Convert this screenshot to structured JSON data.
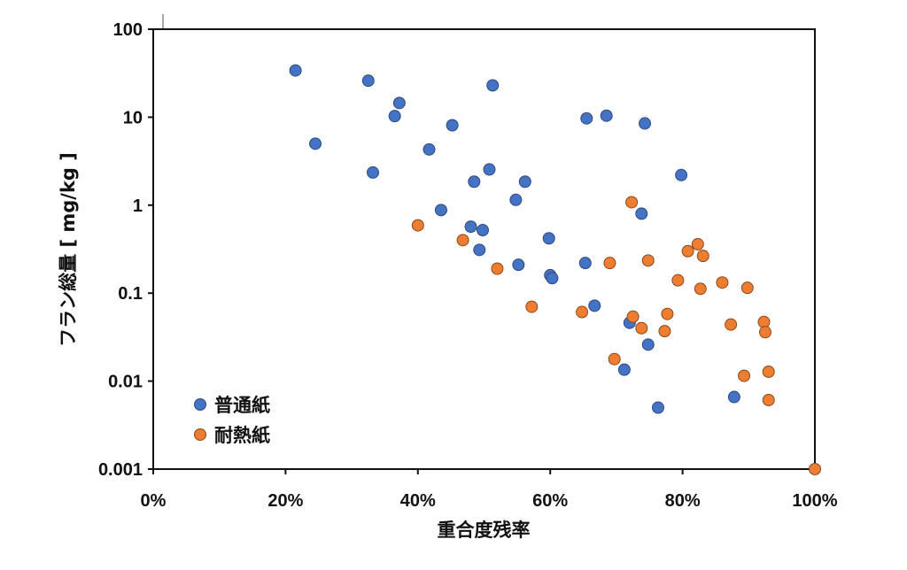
{
  "chart_data": {
    "type": "scatter",
    "title": "",
    "xlabel": "重合度残率",
    "ylabel": "フラン総量 [ mg/kg ]",
    "xlim": [
      0,
      100
    ],
    "ylim": [
      0.001,
      100
    ],
    "y_scale": "log",
    "grid": false,
    "legend_position": "bottom-left",
    "x_ticks": [
      "0%",
      "20%",
      "40%",
      "60%",
      "80%",
      "100%"
    ],
    "y_ticks": [
      "100",
      "10",
      "1",
      "0.1",
      "0.01",
      "0.001"
    ],
    "series": [
      {
        "name": "普通紙",
        "color": "#4472C4",
        "points": [
          [
            21.5,
            34
          ],
          [
            24.5,
            5
          ],
          [
            32.5,
            26
          ],
          [
            33.2,
            2.35
          ],
          [
            36.5,
            10.3
          ],
          [
            37.2,
            14.5
          ],
          [
            41.7,
            4.3
          ],
          [
            43.5,
            0.88
          ],
          [
            45.2,
            8.1
          ],
          [
            48.0,
            0.57
          ],
          [
            48.5,
            1.85
          ],
          [
            49.3,
            0.31
          ],
          [
            49.8,
            0.52
          ],
          [
            50.8,
            2.55
          ],
          [
            51.3,
            23
          ],
          [
            54.8,
            1.15
          ],
          [
            55.2,
            0.21
          ],
          [
            56.2,
            1.85
          ],
          [
            59.8,
            0.42
          ],
          [
            60.0,
            0.16
          ],
          [
            60.3,
            0.148
          ],
          [
            65.3,
            0.22
          ],
          [
            65.5,
            9.7
          ],
          [
            66.7,
            0.072
          ],
          [
            68.5,
            10.4
          ],
          [
            71.2,
            0.0135
          ],
          [
            72.0,
            0.046
          ],
          [
            73.8,
            0.8
          ],
          [
            74.3,
            8.5
          ],
          [
            74.8,
            0.026
          ],
          [
            76.3,
            0.005
          ],
          [
            79.8,
            2.2
          ],
          [
            87.8,
            0.0066
          ]
        ]
      },
      {
        "name": "耐熱紙",
        "color": "#ED7D31",
        "points": [
          [
            40.0,
            0.59
          ],
          [
            46.8,
            0.4
          ],
          [
            52.0,
            0.19
          ],
          [
            57.2,
            0.07
          ],
          [
            64.8,
            0.061
          ],
          [
            69.0,
            0.22
          ],
          [
            69.7,
            0.0178
          ],
          [
            72.3,
            1.08
          ],
          [
            72.5,
            0.054
          ],
          [
            73.8,
            0.04
          ],
          [
            74.8,
            0.235
          ],
          [
            77.3,
            0.037
          ],
          [
            77.7,
            0.058
          ],
          [
            79.3,
            0.14
          ],
          [
            80.8,
            0.3
          ],
          [
            82.3,
            0.36
          ],
          [
            82.7,
            0.112
          ],
          [
            83.1,
            0.265
          ],
          [
            86.0,
            0.132
          ],
          [
            87.3,
            0.044
          ],
          [
            89.3,
            0.0115
          ],
          [
            89.8,
            0.115
          ],
          [
            92.3,
            0.047
          ],
          [
            92.5,
            0.036
          ],
          [
            93.0,
            0.0128
          ],
          [
            93.0,
            0.0061
          ],
          [
            100.0,
            0.001
          ]
        ]
      }
    ]
  }
}
